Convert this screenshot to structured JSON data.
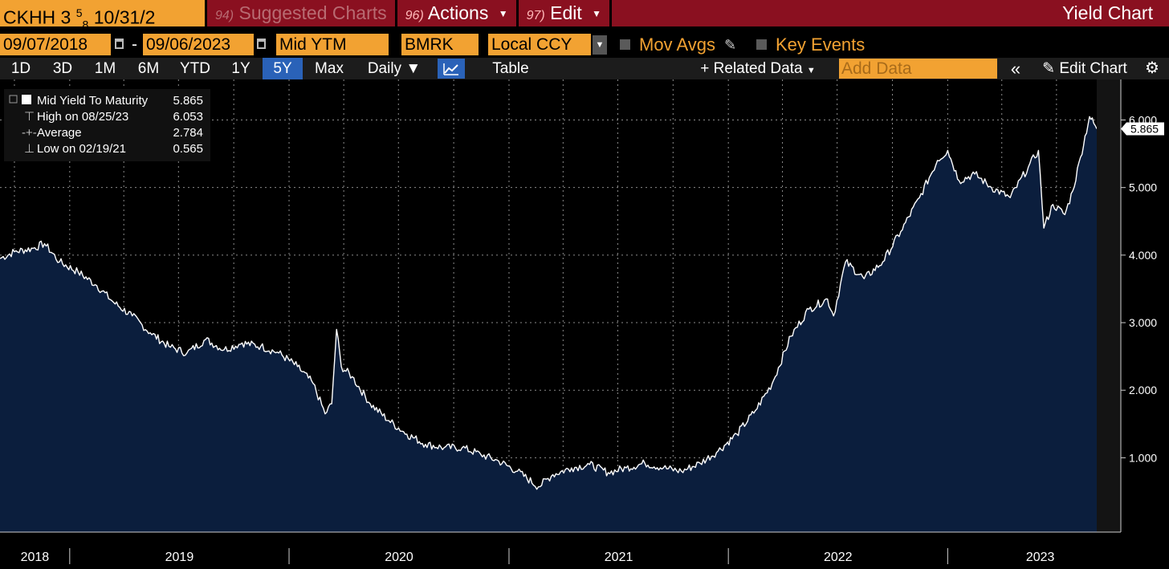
{
  "title_bar": {
    "ticker_main": "CKHH 3",
    "ticker_frac_num": "5",
    "ticker_frac_den": "8",
    "ticker_rest": "10/31/2",
    "suggested_num": "94)",
    "suggested_label": "Suggested Charts",
    "actions_num": "96)",
    "actions_label": "Actions",
    "edit_num": "97)",
    "edit_label": "Edit",
    "app_title": "Yield Chart"
  },
  "controls": {
    "start_date": "09/07/2018",
    "end_date": "09/06/2023",
    "field": "Mid YTM",
    "source": "BMRK",
    "currency": "Local CCY",
    "mov_avgs_label": "Mov Avgs",
    "key_events_label": "Key Events"
  },
  "range_bar": {
    "tabs": [
      "1D",
      "3D",
      "1M",
      "6M",
      "YTD",
      "1Y",
      "5Y",
      "Max"
    ],
    "selected": "5Y",
    "frequency": "Daily",
    "frequency_caret": "▼",
    "table_label": "Table",
    "related_data_label": "Related Data",
    "add_data_placeholder": "Add Data",
    "edit_chart_label": "Edit Chart",
    "plus": "+",
    "collapse_symbol": "«",
    "gear_symbol": "⚙"
  },
  "colors": {
    "orange": "#f2a232",
    "title_red": "#8a1020",
    "selected_blue": "#2a62b8",
    "area_fill": "#0b1e3d",
    "line": "#ffffff"
  },
  "chart_data": {
    "type": "area",
    "series": [
      {
        "name": "Mid Yield To Maturity",
        "points": [
          [
            "2018-09-07",
            3.95
          ],
          [
            "2018-10-01",
            4.05
          ],
          [
            "2018-11-01",
            4.1
          ],
          [
            "2018-11-20",
            4.17
          ],
          [
            "2018-12-15",
            3.9
          ],
          [
            "2019-01-15",
            3.75
          ],
          [
            "2019-02-15",
            3.55
          ],
          [
            "2019-03-15",
            3.3
          ],
          [
            "2019-04-15",
            3.1
          ],
          [
            "2019-05-15",
            2.85
          ],
          [
            "2019-06-15",
            2.65
          ],
          [
            "2019-07-15",
            2.55
          ],
          [
            "2019-08-15",
            2.75
          ],
          [
            "2019-09-15",
            2.6
          ],
          [
            "2019-10-15",
            2.7
          ],
          [
            "2019-11-15",
            2.65
          ],
          [
            "2019-12-15",
            2.55
          ],
          [
            "2020-01-15",
            2.35
          ],
          [
            "2020-02-10",
            2.1
          ],
          [
            "2020-03-01",
            1.65
          ],
          [
            "2020-03-12",
            1.8
          ],
          [
            "2020-03-20",
            2.9
          ],
          [
            "2020-03-28",
            2.35
          ],
          [
            "2020-04-15",
            2.2
          ],
          [
            "2020-05-15",
            1.8
          ],
          [
            "2020-06-15",
            1.55
          ],
          [
            "2020-07-15",
            1.35
          ],
          [
            "2020-08-15",
            1.2
          ],
          [
            "2020-09-15",
            1.15
          ],
          [
            "2020-10-15",
            1.15
          ],
          [
            "2020-11-15",
            1.05
          ],
          [
            "2020-12-15",
            0.95
          ],
          [
            "2021-01-15",
            0.8
          ],
          [
            "2021-02-19",
            0.57
          ],
          [
            "2021-03-15",
            0.75
          ],
          [
            "2021-04-15",
            0.85
          ],
          [
            "2021-05-15",
            0.9
          ],
          [
            "2021-06-15",
            0.78
          ],
          [
            "2021-07-15",
            0.85
          ],
          [
            "2021-08-15",
            0.92
          ],
          [
            "2021-09-15",
            0.85
          ],
          [
            "2021-10-15",
            0.8
          ],
          [
            "2021-11-15",
            0.92
          ],
          [
            "2021-12-15",
            1.1
          ],
          [
            "2022-01-15",
            1.35
          ],
          [
            "2022-02-15",
            1.7
          ],
          [
            "2022-03-15",
            2.1
          ],
          [
            "2022-04-15",
            2.8
          ],
          [
            "2022-05-15",
            3.2
          ],
          [
            "2022-06-15",
            3.35
          ],
          [
            "2022-06-25",
            3.1
          ],
          [
            "2022-07-15",
            3.9
          ],
          [
            "2022-08-15",
            3.65
          ],
          [
            "2022-09-15",
            3.9
          ],
          [
            "2022-10-15",
            4.35
          ],
          [
            "2022-11-15",
            4.85
          ],
          [
            "2022-12-15",
            5.4
          ],
          [
            "2023-01-01",
            5.55
          ],
          [
            "2023-01-20",
            5.1
          ],
          [
            "2023-02-15",
            5.2
          ],
          [
            "2023-03-15",
            5.0
          ],
          [
            "2023-04-15",
            4.85
          ],
          [
            "2023-05-15",
            5.3
          ],
          [
            "2023-06-01",
            5.55
          ],
          [
            "2023-06-10",
            4.4
          ],
          [
            "2023-06-25",
            4.75
          ],
          [
            "2023-07-15",
            4.6
          ],
          [
            "2023-07-28",
            4.95
          ],
          [
            "2023-08-10",
            5.45
          ],
          [
            "2023-08-25",
            6.05
          ],
          [
            "2023-09-01",
            5.95
          ],
          [
            "2023-09-06",
            5.87
          ]
        ]
      }
    ],
    "legend": [
      {
        "label": "Mid Yield To Maturity",
        "value": "5.865"
      },
      {
        "label": "High on 08/25/23",
        "value": "6.053"
      },
      {
        "label": "Average",
        "value": "2.784"
      },
      {
        "label": "Low on 02/19/21",
        "value": "0.565"
      }
    ],
    "last_value_label": "5.865",
    "y_ticks": [
      1.0,
      2.0,
      3.0,
      4.0,
      5.0,
      6.0
    ],
    "y_tick_labels": [
      "1.000",
      "2.000",
      "3.000",
      "4.000",
      "5.000",
      "6.000"
    ],
    "ylim": [
      -0.1,
      6.6
    ],
    "x_range": [
      "2018-09-07",
      "2023-09-06"
    ],
    "x_year_labels": [
      "2018",
      "2019",
      "2020",
      "2021",
      "2022",
      "2023"
    ],
    "grid": true,
    "legend_position": "top-left",
    "xlabel": "",
    "ylabel": ""
  }
}
